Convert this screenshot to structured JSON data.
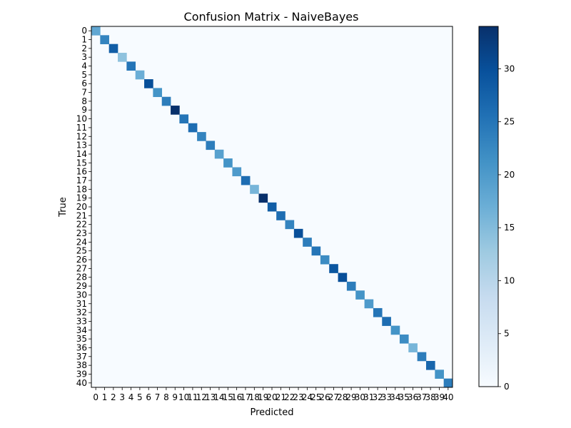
{
  "chart_data": {
    "type": "heatmap",
    "title": "Confusion Matrix - NaiveBayes",
    "xlabel": "Predicted",
    "ylabel": "True",
    "labels": [
      "0",
      "1",
      "2",
      "3",
      "4",
      "5",
      "6",
      "7",
      "8",
      "9",
      "10",
      "11",
      "12",
      "13",
      "14",
      "15",
      "16",
      "17",
      "18",
      "19",
      "20",
      "21",
      "22",
      "23",
      "24",
      "25",
      "26",
      "27",
      "28",
      "29",
      "30",
      "31",
      "32",
      "33",
      "34",
      "35",
      "36",
      "37",
      "38",
      "39",
      "40"
    ],
    "diagonal_values": [
      18,
      23,
      28,
      14,
      25,
      17,
      30,
      21,
      24,
      34,
      25,
      26,
      23,
      24,
      19,
      21,
      20,
      26,
      16,
      34,
      28,
      26,
      23,
      30,
      24,
      25,
      22,
      29,
      30,
      24,
      21,
      20,
      25,
      26,
      21,
      22,
      16,
      24,
      27,
      21,
      24
    ],
    "off_diagonal_value": 0,
    "colorbar": {
      "min": 0,
      "max": 34,
      "ticks": [
        0,
        5,
        10,
        15,
        20,
        25,
        30
      ],
      "colormap": "Blues"
    },
    "grid": false,
    "legend": "colorbar-right"
  }
}
